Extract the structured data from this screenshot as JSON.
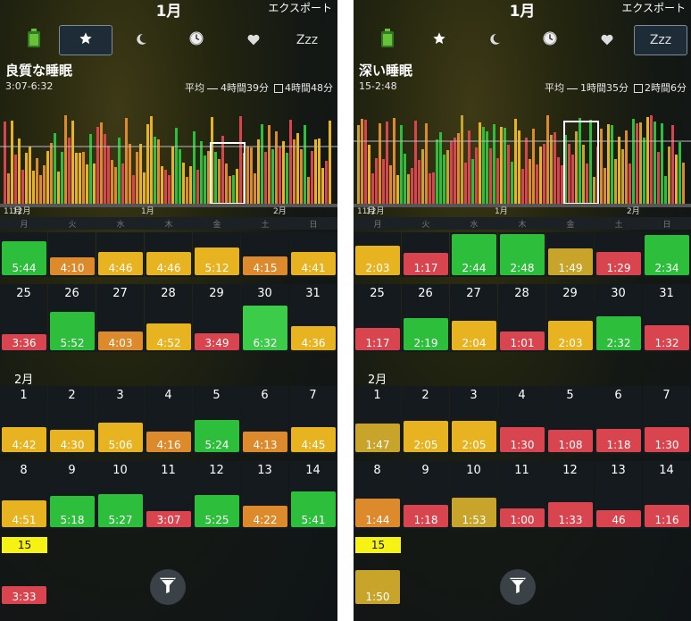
{
  "colors": {
    "green": "#2dbe3c",
    "lightgreen": "#3dcc4a",
    "yellow": "#e8b320",
    "orange": "#dc8a2c",
    "red": "#d8454e",
    "darkyellow": "#c9a42a"
  },
  "panels": [
    {
      "id": "left",
      "month_title": "1月",
      "export_label": "エクスポート",
      "selected_tool": 1,
      "metric_title": "良質な睡眠",
      "metric_range": "3:07-6:32",
      "avg_label": "平均",
      "avg_value": "4時間39分",
      "avg2_value": "4時間48分",
      "x_labels": [
        "11月",
        "12月",
        "1月",
        "2月"
      ],
      "weekdays": [
        "月",
        "火",
        "水",
        "木",
        "金",
        "土",
        "日"
      ],
      "week0": [
        {
          "v": "5:44",
          "c": "green",
          "h": 0.82
        },
        {
          "v": "4:10",
          "c": "orange",
          "h": 0.44
        },
        {
          "v": "4:46",
          "c": "yellow",
          "h": 0.57
        },
        {
          "v": "4:46",
          "c": "yellow",
          "h": 0.57
        },
        {
          "v": "5:12",
          "c": "yellow",
          "h": 0.68
        },
        {
          "v": "4:15",
          "c": "orange",
          "h": 0.46
        },
        {
          "v": "4:41",
          "c": "yellow",
          "h": 0.56
        }
      ],
      "week1": [
        {
          "d": "25",
          "v": "3:36",
          "c": "red",
          "h": 0.35
        },
        {
          "d": "26",
          "v": "5:52",
          "c": "green",
          "h": 0.85
        },
        {
          "d": "27",
          "v": "4:03",
          "c": "orange",
          "h": 0.42
        },
        {
          "d": "28",
          "v": "4:52",
          "c": "yellow",
          "h": 0.6
        },
        {
          "d": "29",
          "v": "3:49",
          "c": "red",
          "h": 0.38
        },
        {
          "d": "30",
          "v": "6:32",
          "c": "lightgreen",
          "h": 1.0
        },
        {
          "d": "31",
          "v": "4:36",
          "c": "yellow",
          "h": 0.54
        }
      ],
      "month2_label": "2月",
      "week2": [
        {
          "d": "1",
          "v": "4:42",
          "c": "yellow",
          "h": 0.56
        },
        {
          "d": "2",
          "v": "4:30",
          "c": "yellow",
          "h": 0.5
        },
        {
          "d": "3",
          "v": "5:06",
          "c": "yellow",
          "h": 0.66
        },
        {
          "d": "4",
          "v": "4:16",
          "c": "orange",
          "h": 0.46
        },
        {
          "d": "5",
          "v": "5:24",
          "c": "green",
          "h": 0.72
        },
        {
          "d": "6",
          "v": "4:13",
          "c": "orange",
          "h": 0.45
        },
        {
          "d": "7",
          "v": "4:45",
          "c": "yellow",
          "h": 0.57
        }
      ],
      "week3": [
        {
          "d": "8",
          "v": "4:51",
          "c": "yellow",
          "h": 0.6
        },
        {
          "d": "9",
          "v": "5:18",
          "c": "green",
          "h": 0.7
        },
        {
          "d": "10",
          "v": "5:27",
          "c": "green",
          "h": 0.74
        },
        {
          "d": "11",
          "v": "3:07",
          "c": "red",
          "h": 0.3
        },
        {
          "d": "12",
          "v": "5:25",
          "c": "green",
          "h": 0.72
        },
        {
          "d": "13",
          "v": "4:22",
          "c": "orange",
          "h": 0.48
        },
        {
          "d": "14",
          "v": "5:41",
          "c": "green",
          "h": 0.8
        }
      ],
      "today": {
        "d": "15",
        "v": "3:33",
        "c": "red",
        "h": 0.35
      }
    },
    {
      "id": "right",
      "month_title": "1月",
      "export_label": "エクスポート",
      "selected_tool": 5,
      "metric_title": "深い睡眠",
      "metric_range": "15-2:48",
      "avg_label": "平均",
      "avg_value": "1時間35分",
      "avg2_value": "2時間6分",
      "x_labels": [
        "11月",
        "12月",
        "1月",
        "2月"
      ],
      "weekdays": [
        "月",
        "火",
        "水",
        "木",
        "金",
        "土",
        "日"
      ],
      "week0": [
        {
          "v": "2:03",
          "c": "yellow",
          "h": 0.72
        },
        {
          "v": "1:17",
          "c": "red",
          "h": 0.54
        },
        {
          "v": "2:44",
          "c": "green",
          "h": 1.0
        },
        {
          "v": "2:48",
          "c": "green",
          "h": 1.0
        },
        {
          "v": "1:49",
          "c": "darkyellow",
          "h": 0.66
        },
        {
          "v": "1:29",
          "c": "red",
          "h": 0.56
        },
        {
          "v": "2:34",
          "c": "green",
          "h": 0.98
        }
      ],
      "week1": [
        {
          "d": "25",
          "v": "1:17",
          "c": "red",
          "h": 0.5
        },
        {
          "d": "26",
          "v": "2:19",
          "c": "green",
          "h": 0.72
        },
        {
          "d": "27",
          "v": "2:04",
          "c": "yellow",
          "h": 0.66
        },
        {
          "d": "28",
          "v": "1:01",
          "c": "red",
          "h": 0.42
        },
        {
          "d": "29",
          "v": "2:03",
          "c": "yellow",
          "h": 0.66
        },
        {
          "d": "30",
          "v": "2:32",
          "c": "green",
          "h": 0.76
        },
        {
          "d": "31",
          "v": "1:32",
          "c": "red",
          "h": 0.56
        }
      ],
      "month2_label": "2月",
      "week2": [
        {
          "d": "1",
          "v": "1:47",
          "c": "darkyellow",
          "h": 0.64
        },
        {
          "d": "2",
          "v": "2:05",
          "c": "yellow",
          "h": 0.7
        },
        {
          "d": "3",
          "v": "2:05",
          "c": "yellow",
          "h": 0.7
        },
        {
          "d": "4",
          "v": "1:30",
          "c": "red",
          "h": 0.56
        },
        {
          "d": "5",
          "v": "1:08",
          "c": "red",
          "h": 0.5
        },
        {
          "d": "6",
          "v": "1:18",
          "c": "red",
          "h": 0.52
        },
        {
          "d": "7",
          "v": "1:30",
          "c": "red",
          "h": 0.56
        }
      ],
      "week3": [
        {
          "d": "8",
          "v": "1:44",
          "c": "orange",
          "h": 0.64
        },
        {
          "d": "9",
          "v": "1:18",
          "c": "red",
          "h": 0.5
        },
        {
          "d": "10",
          "v": "1:53",
          "c": "darkyellow",
          "h": 0.66
        },
        {
          "d": "11",
          "v": "1:00",
          "c": "red",
          "h": 0.42
        },
        {
          "d": "12",
          "v": "1:33",
          "c": "red",
          "h": 0.56
        },
        {
          "d": "13",
          "v": "46",
          "c": "red",
          "h": 0.38
        },
        {
          "d": "14",
          "v": "1:16",
          "c": "red",
          "h": 0.5
        }
      ],
      "today": {
        "d": "15",
        "v": "1:50",
        "c": "darkyellow",
        "h": 0.68
      }
    }
  ],
  "toolbar_icons": [
    "battery-icon",
    "star-icon",
    "moon-icon",
    "clock-icon",
    "heart-icon",
    "zzz-icon"
  ],
  "zzz_label": "Zzz"
}
